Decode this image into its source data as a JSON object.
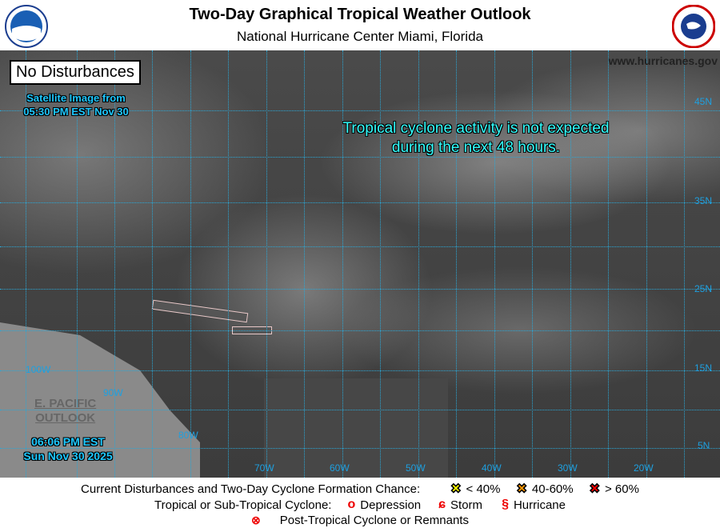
{
  "header": {
    "title": "Two-Day Graphical Tropical Weather Outlook",
    "subtitle": "National Hurricane Center  Miami, Florida",
    "left_logo": "NOAA",
    "right_logo": "National Weather Service"
  },
  "map": {
    "status_box": "No Disturbances",
    "satellite_label": [
      "Satellite Image from",
      "05:30 PM EST Nov 30"
    ],
    "message": [
      "Tropical cyclone activity is not expected",
      "during the next 48 hours."
    ],
    "website": "www.hurricanes.gov",
    "epac_link": [
      "E. PACIFIC",
      "OUTLOOK"
    ],
    "issued": [
      "06:06 PM EST",
      "Sun Nov 30 2025"
    ],
    "lat_labels": [
      "45N",
      "35N",
      "25N",
      "15N",
      "5N"
    ],
    "lon_labels": [
      "100W",
      "90W",
      "80W",
      "70W",
      "60W",
      "50W",
      "40W",
      "30W",
      "20W"
    ],
    "grid_color": "#2aa7d6"
  },
  "legend": {
    "formation_label": "Current Disturbances and Two-Day Cyclone Formation Chance:",
    "chances": [
      {
        "label": "< 40%",
        "color": "#ffff00"
      },
      {
        "label": "40-60%",
        "color": "#ff9900"
      },
      {
        "label": "> 60%",
        "color": "#ff0000"
      }
    ],
    "cyclone_label": "Tropical or Sub-Tropical Cyclone:",
    "cyclones": [
      {
        "label": "Depression",
        "icon": "open-circle-icon"
      },
      {
        "label": "Storm",
        "icon": "storm-icon"
      },
      {
        "label": "Hurricane",
        "icon": "hurricane-icon"
      }
    ],
    "post_tropical": "Post-Tropical Cyclone or Remnants"
  }
}
